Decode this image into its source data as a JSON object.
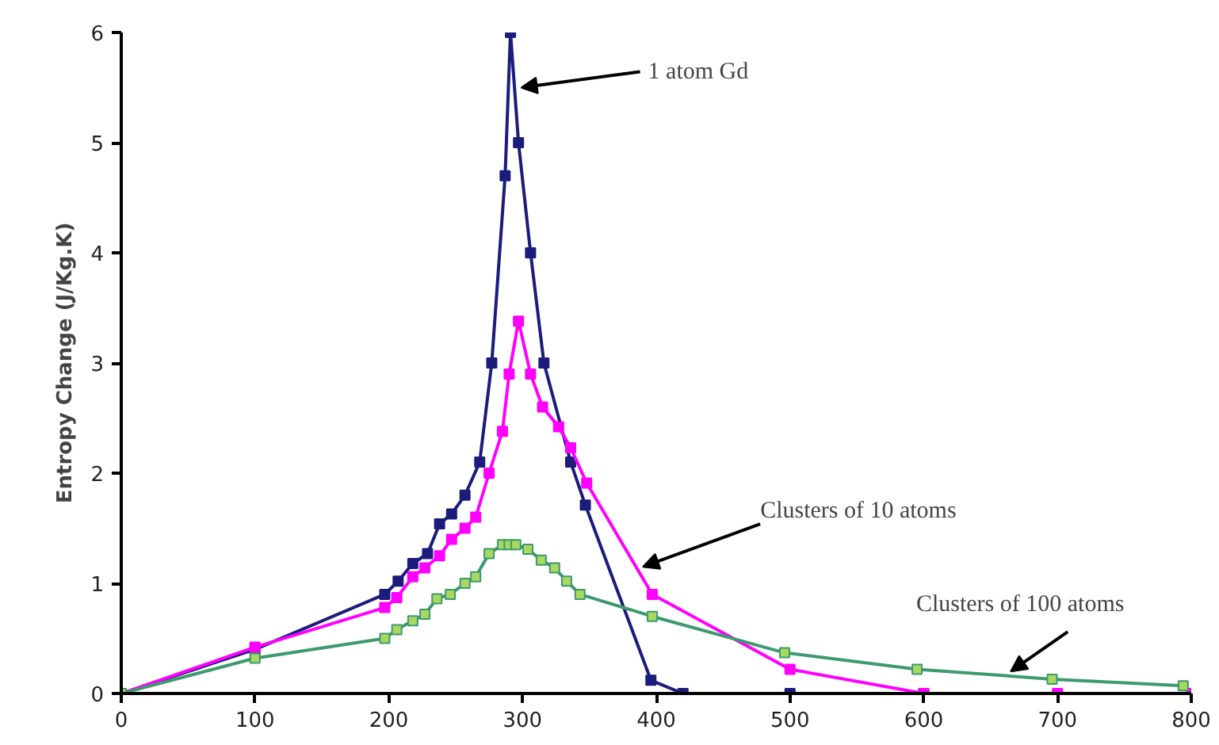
{
  "chart_data": {
    "type": "line",
    "ylabel": "Entropy Change (J/Kg.K)",
    "xlim": [
      0,
      800
    ],
    "ylim": [
      0,
      6
    ],
    "xticks": [
      0,
      100,
      200,
      300,
      400,
      500,
      600,
      700,
      800
    ],
    "yticks": [
      0,
      1,
      2,
      3,
      4,
      5,
      6
    ],
    "grid": false,
    "marker": "square",
    "line_style": "solid",
    "series": [
      {
        "color": "#1c1c7c",
        "x": [
          0,
          100,
          197,
          207,
          218,
          229,
          238,
          247,
          257,
          268,
          277,
          287,
          291,
          297,
          306,
          316,
          336,
          347,
          396,
          420,
          500,
          600
        ],
        "values": [
          0,
          0.4,
          0.9,
          1.02,
          1.18,
          1.27,
          1.54,
          1.63,
          1.8,
          2.1,
          3.0,
          4.7,
          6.0,
          5.0,
          4.0,
          3.0,
          2.1,
          1.71,
          0.12,
          0,
          0,
          0
        ]
      },
      {
        "color": "#ff00ff",
        "x": [
          0,
          100,
          197,
          206,
          218,
          227,
          238,
          247,
          257,
          265,
          275,
          285,
          290,
          297,
          306,
          315,
          327,
          336,
          348,
          397,
          500,
          600,
          700,
          800
        ],
        "values": [
          0,
          0.42,
          0.78,
          0.87,
          1.06,
          1.14,
          1.25,
          1.4,
          1.5,
          1.6,
          2.0,
          2.38,
          2.9,
          3.38,
          2.9,
          2.6,
          2.42,
          2.23,
          1.91,
          0.9,
          0.22,
          0,
          0,
          0
        ]
      },
      {
        "color": "#3c9a6e",
        "x": [
          0,
          100,
          197,
          206,
          218,
          227,
          236,
          246,
          257,
          265,
          275,
          285,
          290,
          295,
          304,
          314,
          324,
          333,
          343,
          397,
          496,
          595,
          696,
          794
        ],
        "values": [
          0,
          0.32,
          0.5,
          0.58,
          0.66,
          0.72,
          0.86,
          0.9,
          1.0,
          1.06,
          1.27,
          1.35,
          1.35,
          1.35,
          1.31,
          1.21,
          1.14,
          1.02,
          0.9,
          0.7,
          0.37,
          0.22,
          0.13,
          0.07
        ]
      }
    ],
    "annotations": [
      {
        "text": "1 atom Gd",
        "x": 299,
        "y": 5.5
      },
      {
        "text": "Clusters of 10 atoms",
        "x": 390,
        "y": 1.15
      },
      {
        "text": "Clusters of 100 atoms",
        "x": 665,
        "y": 0.2
      }
    ]
  }
}
